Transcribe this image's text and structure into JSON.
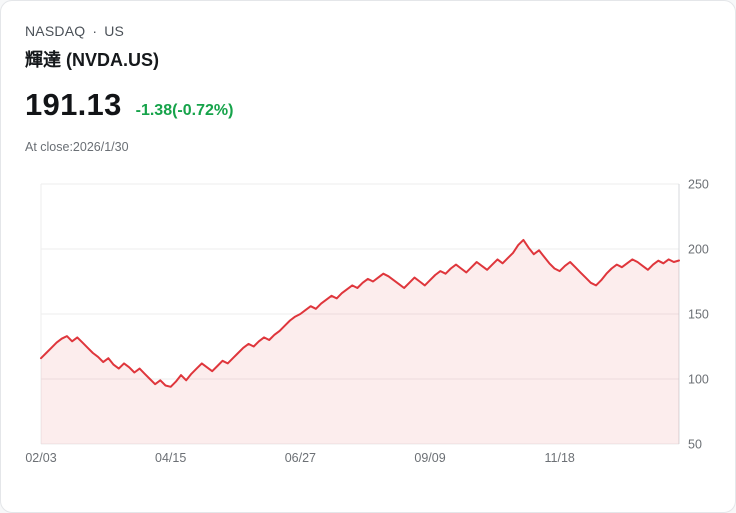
{
  "header": {
    "exchange": "NASDAQ",
    "separator": "·",
    "region": "US",
    "title": "輝達 (NVDA.US)",
    "price": "191.13",
    "change": "-1.38(-0.72%)",
    "as_of": "At close:2026/1/30"
  },
  "colors": {
    "line": "#df363c",
    "fill": "rgba(223,54,60,0.09)",
    "change_text": "#16a34a",
    "grid": "#ededee",
    "right_axis_line": "#d7d9dc",
    "axis_text": "#6c7075"
  },
  "chart_data": {
    "type": "area",
    "title": "NVDA.US 1-year price history",
    "xlabel": "",
    "ylabel": "",
    "ylim": [
      50,
      250
    ],
    "y_ticks": [
      50,
      100,
      150,
      200,
      250
    ],
    "x_tick_labels": [
      "02/03",
      "04/15",
      "06/27",
      "09/09",
      "11/18"
    ],
    "x_tick_indices": [
      0,
      25,
      50,
      75,
      100
    ],
    "grid": "horizontal",
    "legend": "none",
    "last_price": 191.13,
    "values": [
      116,
      120,
      124,
      128,
      131,
      133,
      129,
      132,
      128,
      124,
      120,
      117,
      113,
      116,
      111,
      108,
      112,
      109,
      105,
      108,
      104,
      100,
      96,
      99,
      95,
      94,
      98,
      103,
      99,
      104,
      108,
      112,
      109,
      106,
      110,
      114,
      112,
      116,
      120,
      124,
      127,
      125,
      129,
      132,
      130,
      134,
      137,
      141,
      145,
      148,
      150,
      153,
      156,
      154,
      158,
      161,
      164,
      162,
      166,
      169,
      172,
      170,
      174,
      177,
      175,
      178,
      181,
      179,
      176,
      173,
      170,
      174,
      178,
      175,
      172,
      176,
      180,
      183,
      181,
      185,
      188,
      185,
      182,
      186,
      190,
      187,
      184,
      188,
      192,
      189,
      193,
      197,
      203,
      207,
      201,
      196,
      199,
      194,
      189,
      185,
      183,
      187,
      190,
      186,
      182,
      178,
      174,
      172,
      176,
      181,
      185,
      188,
      186,
      189,
      192,
      190,
      187,
      184,
      188,
      191,
      189,
      192,
      190,
      191.13
    ]
  }
}
